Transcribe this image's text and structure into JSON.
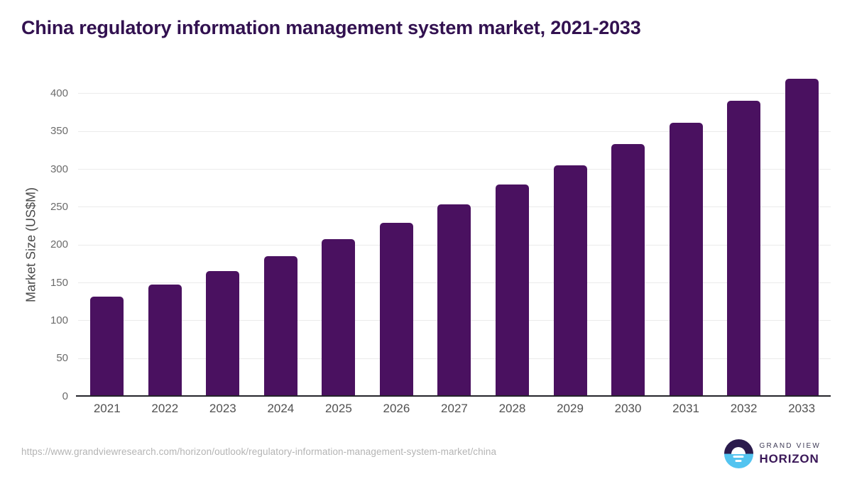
{
  "page": {
    "source_url": "https://www.grandviewresearch.com/horizon/outlook/regulatory-information-management-system-market/china"
  },
  "logo": {
    "line1": "GRAND VIEW",
    "line2": "HORIZON",
    "mark_icon": "horizon-sun-circle"
  },
  "chart_data": {
    "type": "bar",
    "title": "China regulatory information management system market, 2021-2033",
    "categories": [
      "2021",
      "2022",
      "2023",
      "2024",
      "2025",
      "2026",
      "2027",
      "2028",
      "2029",
      "2030",
      "2031",
      "2032",
      "2033"
    ],
    "values": [
      131,
      147,
      165,
      185,
      207,
      229,
      253,
      279,
      305,
      333,
      361,
      390,
      419
    ],
    "xlabel": "",
    "ylabel": "Market Size (US$M)",
    "ylim": [
      0,
      425
    ],
    "yticks": [
      0,
      50,
      100,
      150,
      200,
      250,
      300,
      350,
      400
    ],
    "grid": "horizontal",
    "legend": "none",
    "bar_color": "#4a1160"
  },
  "colors": {
    "title": "#321150",
    "bar": "#4a1160",
    "y_axis_title": "#4a4a4a",
    "y_tick_label": "#6b6b6b",
    "x_tick_label": "#515151",
    "gridline": "#ebebeb",
    "baseline": "#24242a",
    "source_url": "#b4b4b4",
    "logo_circle_top": "#2b1b4d",
    "logo_circle_bottom": "#53c4f0",
    "logo_text_primary": "#3e3b56",
    "logo_text_brand": "#3a1758"
  }
}
